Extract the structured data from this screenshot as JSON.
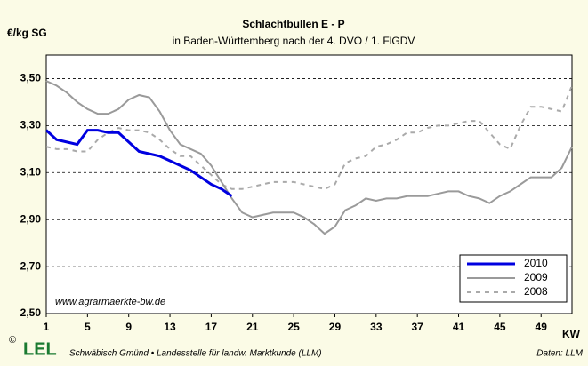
{
  "chart_data": {
    "type": "line",
    "title": "Schlachtbullen E - P",
    "subtitle": "in Baden-Württemberg nach der 4. DVO / 1. FlGDV",
    "y_label": "€/kg SG",
    "x_label": "KW",
    "watermark": "www.agrarmaerkte-bw.de",
    "logo_copyright": "©",
    "logo": "LEL",
    "footer": "Schwäbisch Gmünd • Landesstelle für landw. Marktkunde (LLM)",
    "source": "Daten: LLM",
    "x": [
      1,
      2,
      3,
      4,
      5,
      6,
      7,
      8,
      9,
      10,
      11,
      12,
      13,
      14,
      15,
      16,
      17,
      18,
      19,
      20,
      21,
      22,
      23,
      24,
      25,
      26,
      27,
      28,
      29,
      30,
      31,
      32,
      33,
      34,
      35,
      36,
      37,
      38,
      39,
      40,
      41,
      42,
      43,
      44,
      45,
      46,
      47,
      48,
      49,
      50,
      51,
      52
    ],
    "xlim": [
      1,
      52
    ],
    "xticks": [
      1,
      5,
      9,
      13,
      17,
      21,
      25,
      29,
      33,
      37,
      41,
      45,
      49
    ],
    "ylim": [
      2.5,
      3.6
    ],
    "yticks": [
      {
        "value": 2.5,
        "label": "2,50"
      },
      {
        "value": 2.7,
        "label": "2,70"
      },
      {
        "value": 2.9,
        "label": "2,90"
      },
      {
        "value": 3.1,
        "label": "3,10"
      },
      {
        "value": 3.3,
        "label": "3,30"
      },
      {
        "value": 3.5,
        "label": "3,50"
      }
    ],
    "grid": true,
    "legend": "lower right",
    "series": [
      {
        "name": "2010",
        "color": "#0000e0",
        "style": "solid",
        "width": 3,
        "values": [
          3.28,
          3.24,
          3.23,
          3.22,
          3.28,
          3.28,
          3.27,
          3.27,
          3.23,
          3.19,
          3.18,
          3.17,
          3.15,
          3.13,
          3.11,
          3.08,
          3.05,
          3.03,
          3.0,
          null,
          null,
          null,
          null,
          null,
          null,
          null,
          null,
          null,
          null,
          null,
          null,
          null,
          null,
          null,
          null,
          null,
          null,
          null,
          null,
          null,
          null,
          null,
          null,
          null,
          null,
          null,
          null,
          null,
          null,
          null,
          null,
          null
        ]
      },
      {
        "name": "2009",
        "color": "#9a9a9a",
        "style": "solid",
        "width": 2,
        "values": [
          3.49,
          3.47,
          3.44,
          3.4,
          3.37,
          3.35,
          3.35,
          3.37,
          3.41,
          3.43,
          3.42,
          3.36,
          3.28,
          3.22,
          3.2,
          3.18,
          3.13,
          3.06,
          2.99,
          2.93,
          2.91,
          2.92,
          2.93,
          2.93,
          2.93,
          2.91,
          2.88,
          2.84,
          2.87,
          2.94,
          2.96,
          2.99,
          2.98,
          2.99,
          2.99,
          3.0,
          3.0,
          3.0,
          3.01,
          3.02,
          3.02,
          3.0,
          2.99,
          2.97,
          3.0,
          3.02,
          3.05,
          3.08,
          3.08,
          3.08,
          3.12,
          3.21
        ]
      },
      {
        "name": "2008",
        "color": "#aaaaaa",
        "style": "dashed",
        "width": 2,
        "values": [
          3.21,
          3.2,
          3.2,
          3.19,
          3.19,
          3.24,
          3.27,
          3.29,
          3.28,
          3.28,
          3.27,
          3.24,
          3.2,
          3.17,
          3.17,
          3.13,
          3.09,
          3.05,
          3.03,
          3.03,
          3.04,
          3.05,
          3.06,
          3.06,
          3.06,
          3.05,
          3.04,
          3.03,
          3.05,
          3.14,
          3.16,
          3.17,
          3.21,
          3.22,
          3.24,
          3.27,
          3.27,
          3.29,
          3.3,
          3.3,
          3.31,
          3.32,
          3.32,
          3.27,
          3.22,
          3.2,
          3.3,
          3.38,
          3.38,
          3.37,
          3.36,
          3.47
        ]
      }
    ]
  }
}
